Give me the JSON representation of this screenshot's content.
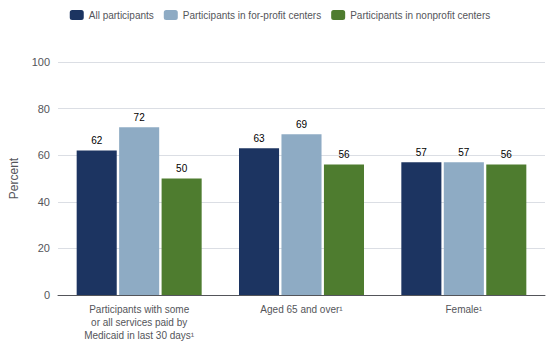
{
  "chart_data": {
    "type": "bar",
    "categories": [
      "Participants with some\nor all services paid by\nMedicaid in last 30 days¹",
      "Aged 65 and over¹",
      "Female¹"
    ],
    "series": [
      {
        "name": "All participants",
        "color": "#1c3461",
        "values": [
          62,
          63,
          57
        ]
      },
      {
        "name": "Participants in for-profit centers",
        "color": "#8eabc4",
        "values": [
          72,
          69,
          57
        ]
      },
      {
        "name": "Participants in nonprofit centers",
        "color": "#4e7c2f",
        "values": [
          50,
          56,
          56
        ]
      }
    ],
    "ylabel": "Percent",
    "ylim": [
      0,
      100
    ],
    "yticks": [
      0,
      20,
      40,
      60,
      80,
      100
    ],
    "grid": true,
    "data_labels": true,
    "legend": "top"
  }
}
